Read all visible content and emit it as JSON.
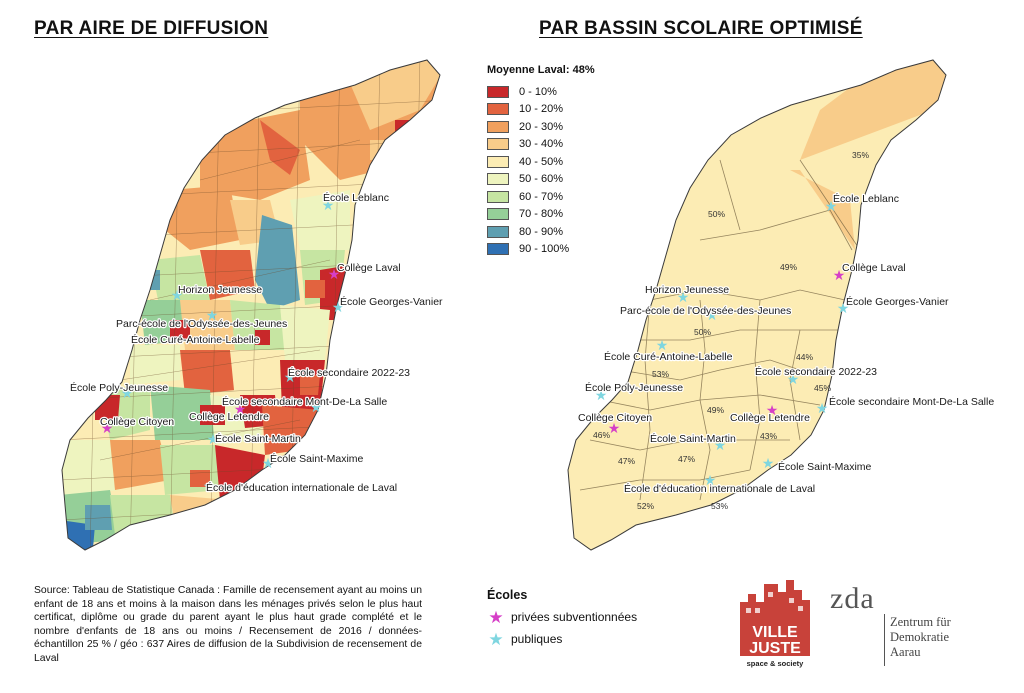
{
  "titles": {
    "left": "PAR AIRE DE DIFFUSION",
    "right": "PAR BASSIN SCOLAIRE OPTIMISÉ"
  },
  "legend": {
    "title": "Moyenne Laval: 48%",
    "classes": [
      {
        "label": "0 - 10%",
        "color": "#c8282a"
      },
      {
        "label": "10 - 20%",
        "color": "#e2633f"
      },
      {
        "label": "20 - 30%",
        "color": "#f0a05e"
      },
      {
        "label": "30 - 40%",
        "color": "#f8cc8a"
      },
      {
        "label": "40 - 50%",
        "color": "#fcecb4"
      },
      {
        "label": "50 - 60%",
        "color": "#eef4bf"
      },
      {
        "label": "60 - 70%",
        "color": "#c6e5a2"
      },
      {
        "label": "70 - 80%",
        "color": "#95cf98"
      },
      {
        "label": "80 - 90%",
        "color": "#5f9fb1"
      },
      {
        "label": "90 - 100%",
        "color": "#2f70b3"
      }
    ]
  },
  "schools": {
    "title": "Écoles",
    "private_label": "privées subventionnées",
    "public_label": "publiques",
    "private_color": "#d63fc7",
    "public_color": "#7fd6e0"
  },
  "left_map_labels": [
    "École Leblanc",
    "Collège Laval",
    "École Georges-Vanier",
    "Horizon Jeunesse",
    "Parc-école de l'Odyssée-des-Jeunes",
    "École Curé-Antoine-Labelle",
    "École secondaire 2022-23",
    "École Poly-Jeunesse",
    "École secondaire Mont-De-La Salle",
    "Collège Letendre",
    "Collège Citoyen",
    "École Saint-Martin",
    "École Saint-Maxime",
    "École d'éducation internationale de Laval"
  ],
  "right_map_labels": [
    "École Leblanc",
    "Collège Laval",
    "École Georges-Vanier",
    "Horizon Jeunesse",
    "Parc-école de l'Odyssée-des-Jeunes",
    "École Curé-Antoine-Labelle",
    "École secondaire 2022-23",
    "École Poly-Jeunesse",
    "École secondaire Mont-De-La Salle",
    "Collège Letendre",
    "Collège Citoyen",
    "École Saint-Martin",
    "École Saint-Maxime",
    "École d'éducation internationale de Laval"
  ],
  "right_map_percentages": [
    "35%",
    "50%",
    "49%",
    "50%",
    "44%",
    "53%",
    "45%",
    "49%",
    "43%",
    "46%",
    "47%",
    "47%",
    "52%",
    "53%"
  ],
  "source": "Source: Tableau de Statistique Canada : Famille de recensement ayant au moins un enfant de 18 ans et moins à la maison dans les ménages privés selon le plus haut certificat, diplôme ou grade du parent ayant le plus haut grade complété et le nombre d'enfants de 18 ans ou moins / Recensement de 2016 / données-échantillon 25 % / géo : 637 Aires de diffusion de la Subdivision de recensement de Laval",
  "logos": {
    "ville_juste": "VILLE JUSTE",
    "ville_juste_tagline": "space & society",
    "zda_mark": "zda",
    "zda_name": [
      "Zentrum für",
      "Demokratie",
      "Aarau"
    ]
  }
}
